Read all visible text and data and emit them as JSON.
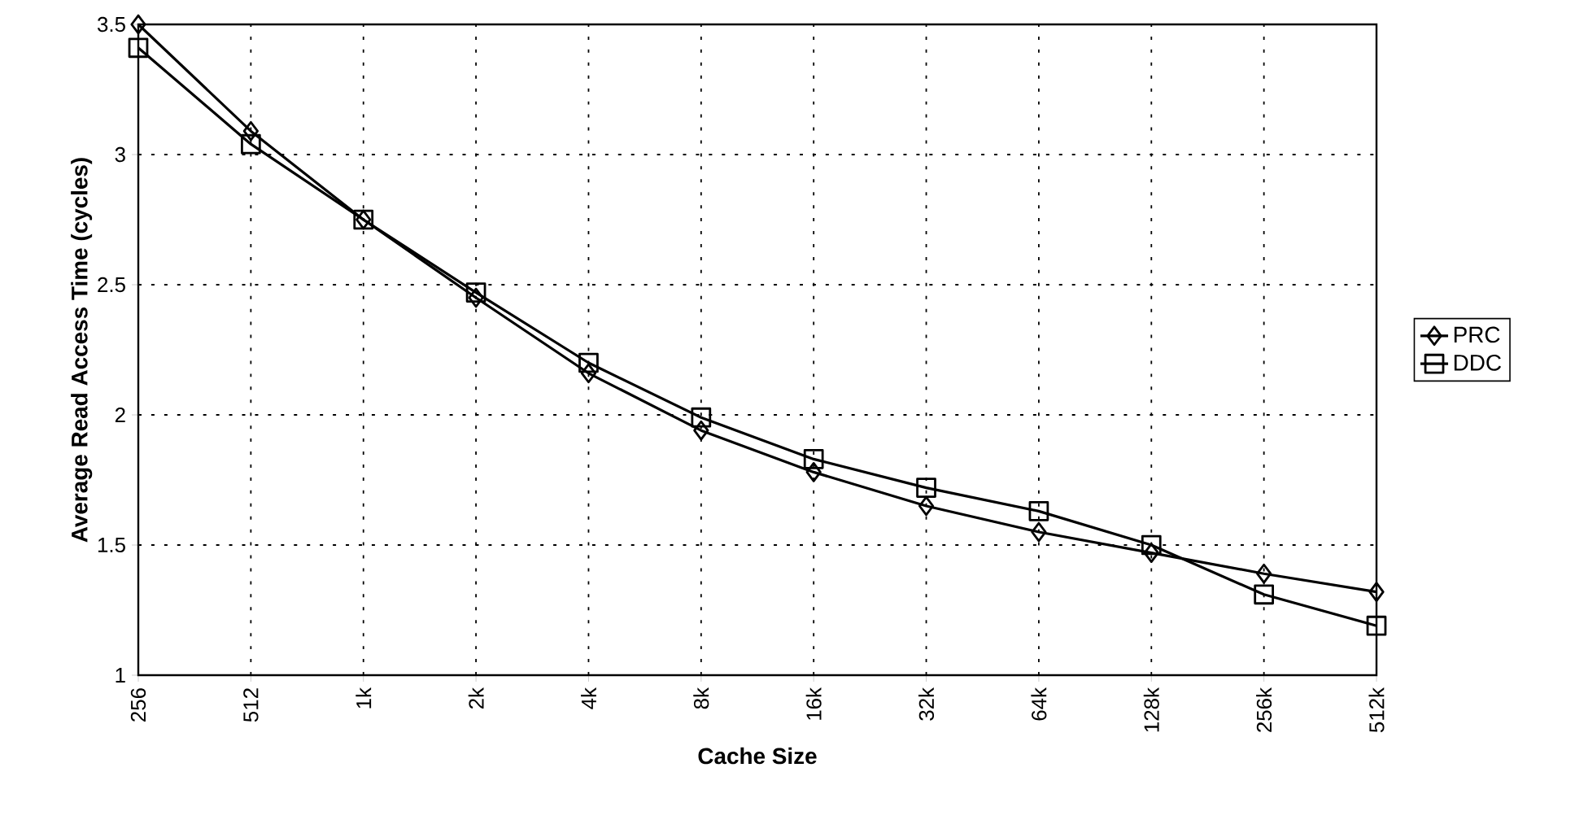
{
  "chart_data": {
    "type": "line",
    "xlabel": "Cache Size",
    "ylabel": "Average Read Access Time (cycles)",
    "categories": [
      "256",
      "512",
      "1k",
      "2k",
      "4k",
      "8k",
      "16k",
      "32k",
      "64k",
      "128k",
      "256k",
      "512k"
    ],
    "series": [
      {
        "name": "PRC",
        "color": "#000000",
        "marker": "diamond",
        "values": [
          3.5,
          3.09,
          2.75,
          2.45,
          2.16,
          1.94,
          1.78,
          1.65,
          1.55,
          1.47,
          1.39,
          1.32
        ]
      },
      {
        "name": "DDC",
        "color": "#000000",
        "marker": "square",
        "values": [
          3.41,
          3.04,
          2.75,
          2.47,
          2.2,
          1.99,
          1.83,
          1.72,
          1.63,
          1.5,
          1.31,
          1.19
        ]
      }
    ],
    "ylim": [
      1,
      3.5
    ],
    "yticks": [
      1,
      1.5,
      2,
      2.5,
      3,
      3.5
    ],
    "grid": true,
    "legend": "right",
    "line_style": "solid"
  }
}
